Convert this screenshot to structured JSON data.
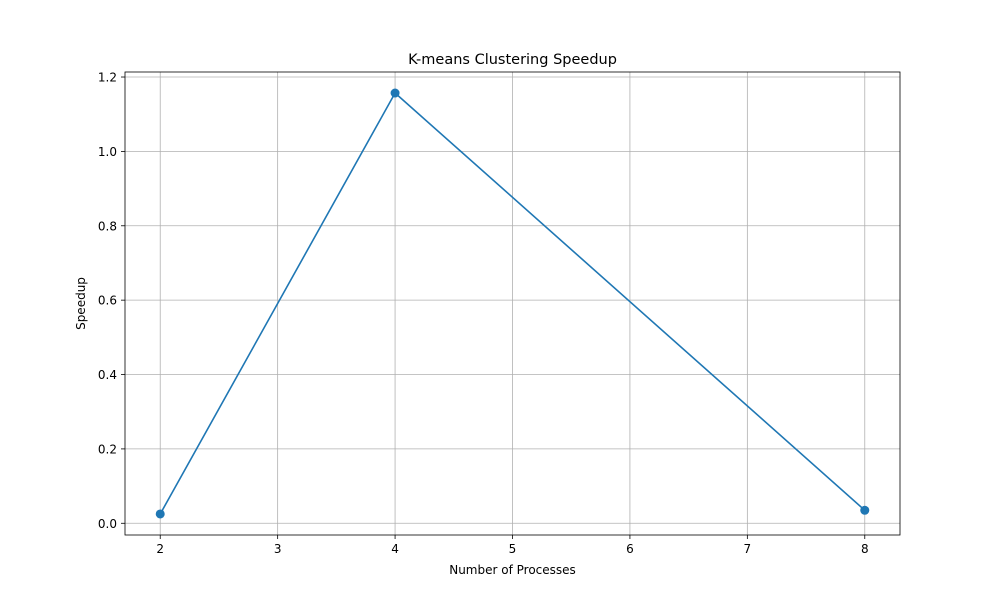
{
  "chart_data": {
    "type": "line",
    "title": "K-means Clustering Speedup",
    "xlabel": "Number of Processes",
    "ylabel": "Speedup",
    "x": [
      2,
      4,
      8
    ],
    "series": [
      {
        "values": [
          0.025,
          1.157,
          0.035
        ],
        "color": "#1f77b4",
        "marker": "circle"
      }
    ],
    "xlim": [
      1.7,
      8.3
    ],
    "ylim": [
      -0.0315,
      1.2135
    ],
    "xticks": [
      2,
      3,
      4,
      5,
      6,
      7,
      8
    ],
    "xtick_labels": [
      "2",
      "3",
      "4",
      "5",
      "6",
      "7",
      "8"
    ],
    "yticks": [
      0.0,
      0.2,
      0.4,
      0.6,
      0.8,
      1.0,
      1.2
    ],
    "ytick_labels": [
      "0.0",
      "0.2",
      "0.4",
      "0.6",
      "0.8",
      "1.0",
      "1.2"
    ],
    "grid": true,
    "legend": "none",
    "grid_color": "#b0b0b0"
  }
}
